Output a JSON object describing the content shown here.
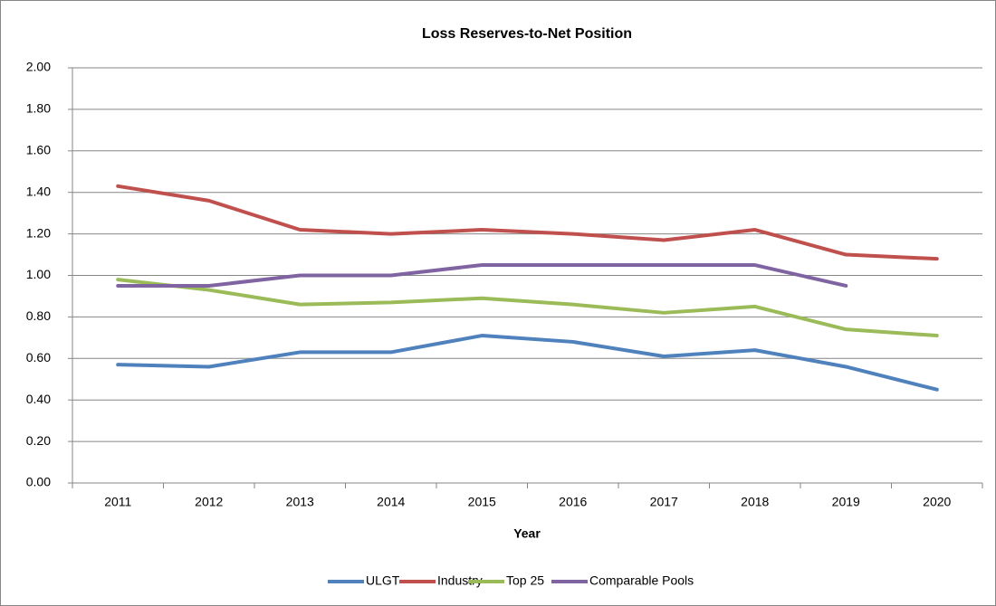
{
  "chart_data": {
    "type": "line",
    "title": "Loss Reserves-to-Net Position",
    "xlabel": "Year",
    "categories": [
      "2011",
      "2012",
      "2013",
      "2014",
      "2015",
      "2016",
      "2017",
      "2018",
      "2019",
      "2020"
    ],
    "series": [
      {
        "name": "ULGT",
        "color": "#4f81bd",
        "values": [
          0.57,
          0.56,
          0.63,
          0.63,
          0.71,
          0.68,
          0.61,
          0.64,
          0.56,
          0.45
        ]
      },
      {
        "name": "Industry",
        "color": "#c0504d",
        "values": [
          1.43,
          1.36,
          1.22,
          1.2,
          1.22,
          1.2,
          1.17,
          1.22,
          1.1,
          1.08
        ]
      },
      {
        "name": "Top 25",
        "color": "#9bbb59",
        "values": [
          0.98,
          0.93,
          0.86,
          0.87,
          0.89,
          0.86,
          0.82,
          0.85,
          0.74,
          0.71
        ]
      },
      {
        "name": "Comparable Pools",
        "color": "#8064a2",
        "values": [
          0.95,
          0.95,
          1.0,
          1.0,
          1.05,
          1.05,
          1.05,
          1.05,
          0.95,
          null
        ]
      }
    ],
    "ylim": [
      0,
      2
    ],
    "yticks": [
      {
        "value": 0,
        "label": "0.00"
      },
      {
        "value": 0.2,
        "label": "0.20"
      },
      {
        "value": 0.4,
        "label": "0.40"
      },
      {
        "value": 0.6,
        "label": "0.60"
      },
      {
        "value": 0.8,
        "label": "0.80"
      },
      {
        "value": 1.0,
        "label": "1.00"
      },
      {
        "value": 1.2,
        "label": "1.20"
      },
      {
        "value": 1.4,
        "label": "1.40"
      },
      {
        "value": 1.6,
        "label": "1.60"
      },
      {
        "value": 1.8,
        "label": "1.80"
      },
      {
        "value": 2.0,
        "label": "2.00"
      }
    ],
    "grid": true,
    "legend": "bottom"
  }
}
